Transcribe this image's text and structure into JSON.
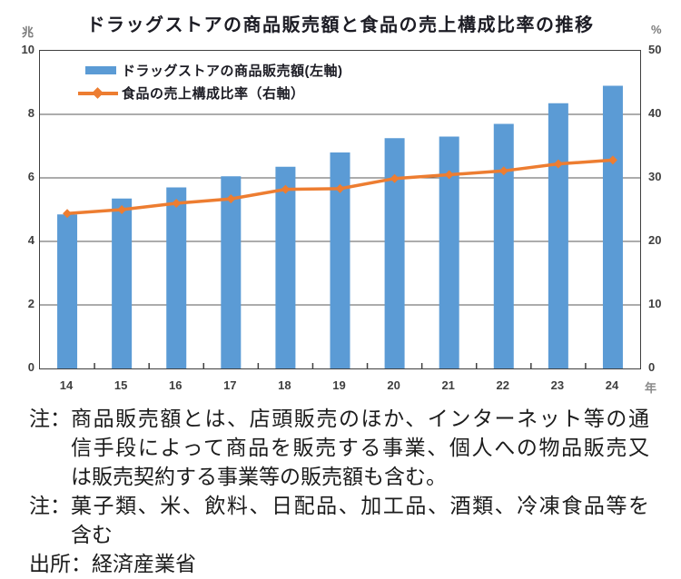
{
  "title": "ドラッグストアの商品販売額と食品の売上構成比率の推移",
  "chart_data": {
    "type": "bar",
    "subtype": "bar-line-combo",
    "categories": [
      "14",
      "15",
      "16",
      "17",
      "18",
      "19",
      "20",
      "21",
      "22",
      "23",
      "24"
    ],
    "x_suffix": "年",
    "series": [
      {
        "name": "ドラッグストアの商品販売額(左軸)",
        "type": "bar",
        "axis": "left",
        "color": "#5B9BD5",
        "values": [
          4.85,
          5.35,
          5.7,
          6.05,
          6.35,
          6.8,
          7.25,
          7.3,
          7.7,
          8.35,
          8.9
        ]
      },
      {
        "name": "食品の売上構成比率（右軸）",
        "type": "line",
        "axis": "right",
        "color": "#ED7D31",
        "values": [
          24.4,
          25.0,
          26.0,
          26.7,
          28.2,
          28.3,
          29.9,
          30.5,
          31.1,
          32.2,
          32.8
        ]
      }
    ],
    "left_axis": {
      "unit": "兆",
      "min": 0,
      "max": 10,
      "ticks": [
        0,
        2,
        4,
        6,
        8,
        10
      ]
    },
    "right_axis": {
      "unit": "%",
      "min": 0,
      "max": 50,
      "ticks": [
        0,
        10,
        20,
        30,
        40,
        50
      ]
    },
    "grid": true,
    "legend_position": "top-left-inside",
    "colors": {
      "gridline": "#595959",
      "plot_border": "#3f3f3f",
      "axis_text": "#3f3f3f"
    }
  },
  "notes": [
    {
      "label": "注：",
      "lines": [
        "商品販売額とは、店頭販売のほか、インターネット等の通",
        "信手段によって商品を販売する事業、個人への物品販売又",
        "は販売契約する事業等の販売額も含む。"
      ]
    },
    {
      "label": "注：",
      "lines": [
        "菓子類、米、飲料、日配品、加工品、酒類、冷凍食品等を",
        "含む"
      ]
    },
    {
      "label": "出所：",
      "lines": [
        "経済産業省"
      ]
    }
  ]
}
